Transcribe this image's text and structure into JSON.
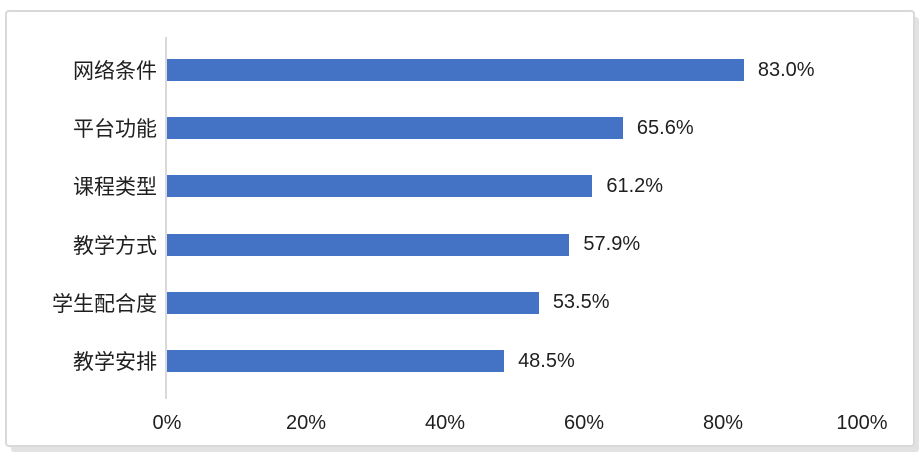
{
  "chart_data": {
    "type": "bar",
    "orientation": "horizontal",
    "title": "",
    "xlabel": "",
    "ylabel": "",
    "categories": [
      "网络条件",
      "平台功能",
      "课程类型",
      "教学方式",
      "学生配合度",
      "教学安排"
    ],
    "values": [
      83.0,
      65.6,
      61.2,
      57.9,
      53.5,
      48.5
    ],
    "data_labels": [
      "83.0%",
      "65.6%",
      "61.2%",
      "57.9%",
      "53.5%",
      "48.5%"
    ],
    "x_ticks": [
      "0%",
      "20%",
      "40%",
      "60%",
      "80%",
      "100%"
    ],
    "xlim": [
      0,
      100
    ],
    "grid": false,
    "legend": "none",
    "bar_color": "#4472C4",
    "axis_line_color": "#D9D9D9",
    "frame_border_color": "#D9D9D9",
    "text_color": "#1F1F1F"
  }
}
